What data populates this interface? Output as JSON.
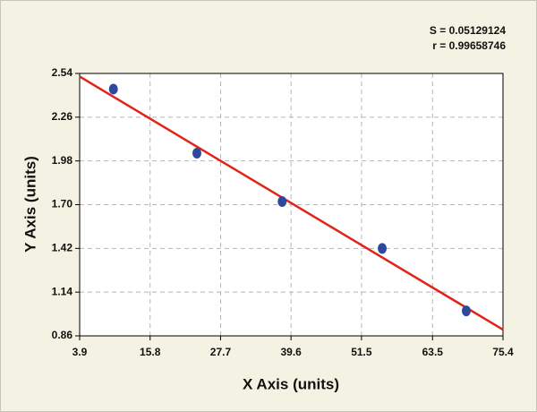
{
  "chart_data": {
    "type": "scatter",
    "annotations": [
      "S = 0.05129124",
      "r = 0.99658746"
    ],
    "x_label": "X Axis (units)",
    "y_label": "Y Axis (units)",
    "xlim": [
      3.9,
      75.4
    ],
    "xticks": [
      3.9,
      15.8,
      27.7,
      39.6,
      51.5,
      63.5,
      75.4
    ],
    "ylim": [
      0.86,
      2.54
    ],
    "yticks": [
      0.86,
      1.14,
      1.42,
      {
        "value": 1.7,
        "label": "1.70"
      },
      1.98,
      2.26,
      2.54
    ],
    "grid": true,
    "series": [
      {
        "type": "scatter",
        "color": "#2c4a9c",
        "x": [
          9.6,
          23.7,
          38.1,
          55.0,
          69.2
        ],
        "values": [
          2.44,
          2.03,
          1.72,
          1.42,
          1.02
        ]
      },
      {
        "type": "line",
        "color": "#e2231a",
        "x": [
          3.9,
          75.4
        ],
        "values": [
          2.52,
          0.9
        ]
      }
    ]
  }
}
